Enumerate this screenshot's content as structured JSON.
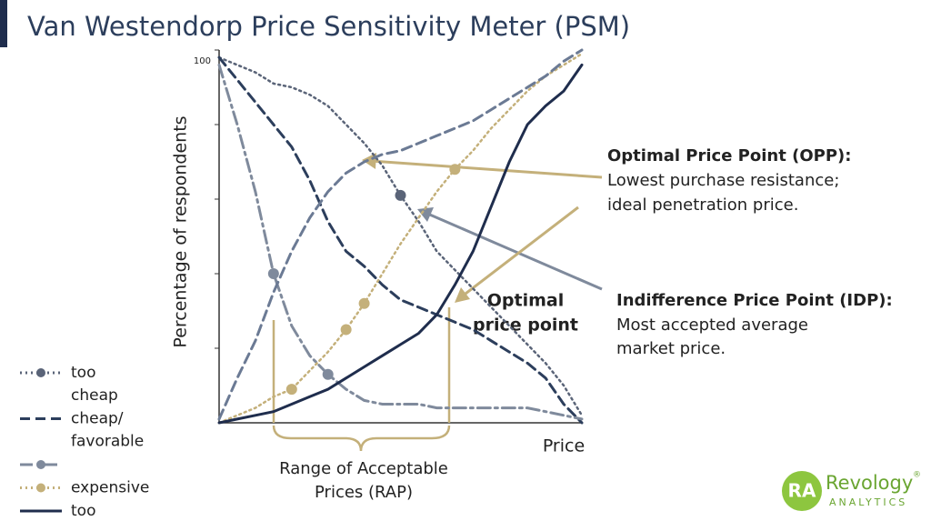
{
  "chart_data": {
    "type": "line",
    "title": "Van Westendorp Price Sensitivity Meter (PSM)",
    "y_label": "Percentage of respondents",
    "x_label": "Price",
    "categories": [
      null,
      null,
      null,
      null,
      null,
      null,
      null,
      null,
      null,
      null,
      null,
      null,
      null,
      null,
      null,
      null,
      null,
      null,
      null,
      null,
      null
    ],
    "ylim": [
      0,
      100
    ],
    "yticks": [
      100
    ],
    "yminor": [
      20,
      40,
      60,
      80
    ],
    "series": [
      {
        "name": "too cheap",
        "color": "#5a6478",
        "style": "dotted",
        "markers": [
          10
        ],
        "values": [
          98,
          96,
          94,
          91,
          90,
          88,
          85,
          80,
          75,
          69,
          61,
          54,
          46,
          41,
          36,
          31,
          26,
          21,
          16,
          10,
          2
        ]
      },
      {
        "name": "cheap/ favorable",
        "color": "#2c3e5c",
        "style": "dashed",
        "markers": [],
        "values": [
          98,
          92,
          86,
          80,
          74,
          65,
          54,
          46,
          42,
          37,
          33,
          31,
          29,
          27,
          25,
          22,
          19,
          16,
          12,
          5,
          0
        ]
      },
      {
        "color": "#7f8a9c",
        "style": "dashdot",
        "markers": [
          3,
          6
        ],
        "values": [
          96,
          80,
          62,
          40,
          26,
          18,
          13,
          9,
          6,
          5,
          5,
          5,
          4,
          4,
          4,
          4,
          4,
          4,
          3,
          2,
          1
        ]
      },
      {
        "name": "expensive",
        "color": "#c4b07a",
        "style": "dotted",
        "markers": [
          4,
          7,
          8,
          13
        ],
        "values": [
          0,
          2,
          4,
          7,
          9,
          14,
          19,
          25,
          32,
          40,
          48,
          55,
          62,
          68,
          73,
          79,
          84,
          89,
          93,
          96,
          99
        ]
      },
      {
        "name": "too expensive",
        "color": "#1f2d4d",
        "style": "solid",
        "markers": [],
        "values": [
          0,
          1,
          2,
          3,
          5,
          7,
          9,
          12,
          15,
          18,
          21,
          24,
          29,
          37,
          46,
          58,
          70,
          80,
          85,
          89,
          96
        ]
      },
      {
        "color": "#6b7a94",
        "style": "dashed",
        "in_legend": false,
        "markers": [],
        "values": [
          1,
          12,
          22,
          35,
          46,
          55,
          62,
          67,
          70,
          72,
          73,
          75,
          77,
          79,
          81,
          84,
          87,
          90,
          93,
          97,
          100
        ]
      }
    ],
    "annotations": {
      "opp_title": "Optimal Price Point (OPP):",
      "opp_line1": "Lowest purchase resistance;",
      "opp_line2": "ideal penetration price.",
      "idp_title": "Indifference Price Point (IDP):",
      "idp_line1": "Most accepted average",
      "idp_line2": "market price.",
      "optimal_1": "Optimal",
      "optimal_2": "price point",
      "rap_1": "Range of Acceptable",
      "rap_2": "Prices (RAP)"
    },
    "logo": {
      "mark": "RA",
      "name": "Revology",
      "sub": "ANALYTICS",
      "reg": "®"
    }
  }
}
